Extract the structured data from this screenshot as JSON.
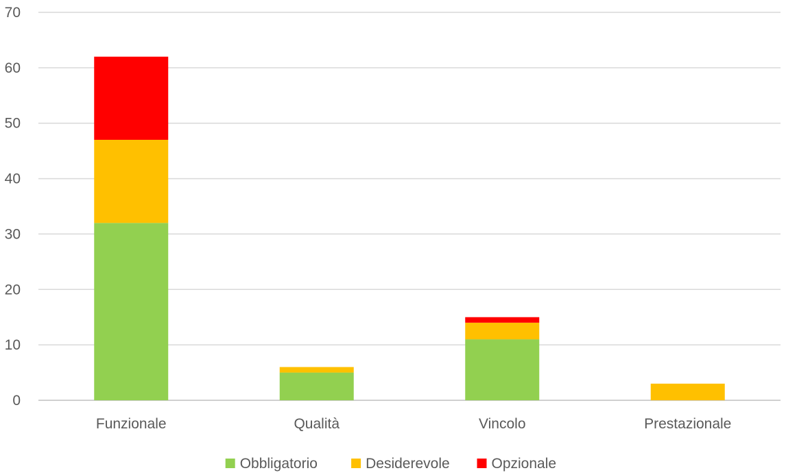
{
  "chart_data": {
    "type": "bar",
    "stacked": true,
    "categories": [
      "Funzionale",
      "Qualità",
      "Vincolo",
      "Prestazionale"
    ],
    "series": [
      {
        "name": "Obbligatorio",
        "color": "#92D050",
        "values": [
          32,
          5,
          11,
          0
        ]
      },
      {
        "name": "Desiderevole",
        "color": "#FFC000",
        "values": [
          15,
          1,
          3,
          3
        ]
      },
      {
        "name": "Opzionale",
        "color": "#FF0000",
        "values": [
          15,
          0,
          1,
          0
        ]
      }
    ],
    "ylim": [
      0,
      70
    ],
    "yticks": [
      0,
      10,
      20,
      30,
      40,
      50,
      60,
      70
    ],
    "grid": true,
    "legend_position": "bottom",
    "title": "",
    "xlabel": "",
    "ylabel": ""
  }
}
